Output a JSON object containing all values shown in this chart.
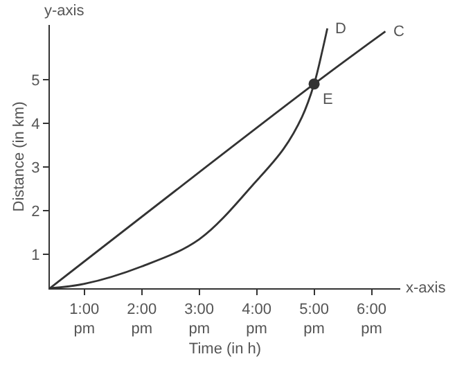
{
  "chart_data": {
    "type": "line",
    "xlabel": "Time (in h)",
    "ylabel": "Distance (in km)",
    "xlim": [
      12.4,
      18.5
    ],
    "ylim": [
      0.23,
      6.25
    ],
    "xticks": [
      {
        "value": 13,
        "label": "1:00\npm"
      },
      {
        "value": 14,
        "label": "2:00\npm"
      },
      {
        "value": 15,
        "label": "3:00\npm"
      },
      {
        "value": 16,
        "label": "4:00\npm"
      },
      {
        "value": 17,
        "label": "5:00\npm"
      },
      {
        "value": 18,
        "label": "6:00\npm"
      }
    ],
    "yticks": [
      1,
      2,
      3,
      4,
      5
    ],
    "marker": "none",
    "line_style": "solid",
    "series": [
      {
        "color": "#333333",
        "x": [
          12.4,
          17,
          18.24
        ],
        "values": [
          0.23,
          4.9,
          6.1
        ]
      },
      {
        "color": "#333333",
        "x": [
          12.4,
          13,
          14,
          15,
          16,
          16.47,
          16.79,
          17,
          17.15,
          17.23
        ],
        "values": [
          0.23,
          0.33,
          0.73,
          1.35,
          2.69,
          3.42,
          4.15,
          4.9,
          5.7,
          6.17
        ]
      },
      {
        "type": "scatter",
        "marker": "circle",
        "color": "#333333",
        "x": [
          17
        ],
        "values": [
          4.9
        ]
      }
    ],
    "annotations": [
      "y-axis",
      "x-axis",
      {
        "text": "D",
        "x": 17.23,
        "y": 6.17
      },
      {
        "text": "C",
        "x": 18.24,
        "y": 6.1
      },
      {
        "text": "E",
        "x": 17,
        "y": 4.9
      }
    ]
  }
}
